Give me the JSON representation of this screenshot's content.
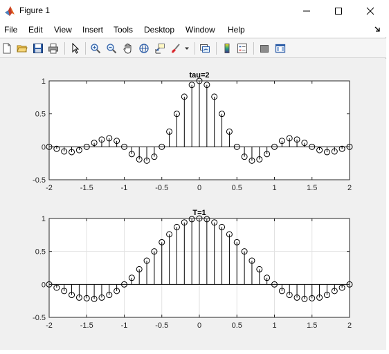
{
  "window": {
    "title": "Figure 1",
    "controls": [
      "minimize",
      "maximize",
      "close"
    ]
  },
  "menu": {
    "items": [
      "File",
      "Edit",
      "View",
      "Insert",
      "Tools",
      "Desktop",
      "Window",
      "Help"
    ]
  },
  "toolbar": {
    "buttons": [
      "new-figure-icon",
      "open-file-icon",
      "save-icon",
      "print-icon",
      "edit-plot-arrow-icon",
      "zoom-in-icon",
      "zoom-out-icon",
      "pan-hand-icon",
      "rotate-3d-icon",
      "data-cursor-icon",
      "brush-icon",
      "link-plot-icon",
      "colorbar-icon",
      "legend-icon",
      "hide-plot-tools-icon",
      "show-plot-tools-icon"
    ]
  },
  "chart_data": [
    {
      "type": "stem",
      "title": "tau=2",
      "xlim": [
        -2,
        2
      ],
      "ylim": [
        -0.5,
        1
      ],
      "xticks": [
        "-2",
        "-1.5",
        "-1",
        "-0.5",
        "0",
        "0.5",
        "1",
        "1.5",
        "2"
      ],
      "yticks": [
        "-0.5",
        "0",
        "0.5",
        "1"
      ],
      "grid": false,
      "x": [
        -2,
        -1.9,
        -1.8,
        -1.7,
        -1.6,
        -1.5,
        -1.4,
        -1.3,
        -1.2,
        -1.1,
        -1,
        -0.9,
        -0.8,
        -0.7,
        -0.6,
        -0.5,
        -0.4,
        -0.3,
        -0.2,
        -0.1,
        0,
        0.1,
        0.2,
        0.3,
        0.4,
        0.5,
        0.6,
        0.7,
        0.8,
        0.9,
        1,
        1.1,
        1.2,
        1.3,
        1.4,
        1.5,
        1.6,
        1.7,
        1.8,
        1.9,
        2
      ],
      "y": [
        0,
        -0.03,
        -0.07,
        -0.08,
        -0.05,
        0,
        0.06,
        0.11,
        0.13,
        0.09,
        0,
        -0.11,
        -0.19,
        -0.21,
        -0.15,
        0,
        0.23,
        0.5,
        0.76,
        0.94,
        1,
        0.94,
        0.76,
        0.5,
        0.23,
        0,
        -0.15,
        -0.21,
        -0.19,
        -0.11,
        0,
        0.09,
        0.13,
        0.11,
        0.06,
        0,
        -0.05,
        -0.08,
        -0.07,
        -0.03,
        0
      ]
    },
    {
      "type": "stem",
      "title": "T=1",
      "xlim": [
        -2,
        2
      ],
      "ylim": [
        -0.5,
        1
      ],
      "xticks": [
        "-2",
        "-1.5",
        "-1",
        "-0.5",
        "0",
        "0.5",
        "1",
        "1.5",
        "2"
      ],
      "yticks": [
        "-0.5",
        "0",
        "0.5",
        "1"
      ],
      "grid": true,
      "x": [
        -2,
        -1.9,
        -1.8,
        -1.7,
        -1.6,
        -1.5,
        -1.4,
        -1.3,
        -1.2,
        -1.1,
        -1,
        -0.9,
        -0.8,
        -0.7,
        -0.6,
        -0.5,
        -0.4,
        -0.3,
        -0.2,
        -0.1,
        0,
        0.1,
        0.2,
        0.3,
        0.4,
        0.5,
        0.6,
        0.7,
        0.8,
        0.9,
        1,
        1.1,
        1.2,
        1.3,
        1.4,
        1.5,
        1.6,
        1.7,
        1.8,
        1.9,
        2
      ],
      "y": [
        0,
        -0.05,
        -0.1,
        -0.16,
        -0.2,
        -0.21,
        -0.22,
        -0.2,
        -0.16,
        -0.1,
        0,
        0.1,
        0.23,
        0.36,
        0.5,
        0.64,
        0.76,
        0.87,
        0.94,
        0.99,
        1,
        0.99,
        0.94,
        0.87,
        0.76,
        0.64,
        0.5,
        0.36,
        0.23,
        0.1,
        0,
        -0.1,
        -0.16,
        -0.2,
        -0.22,
        -0.21,
        -0.2,
        -0.16,
        -0.1,
        -0.05,
        0
      ]
    }
  ]
}
